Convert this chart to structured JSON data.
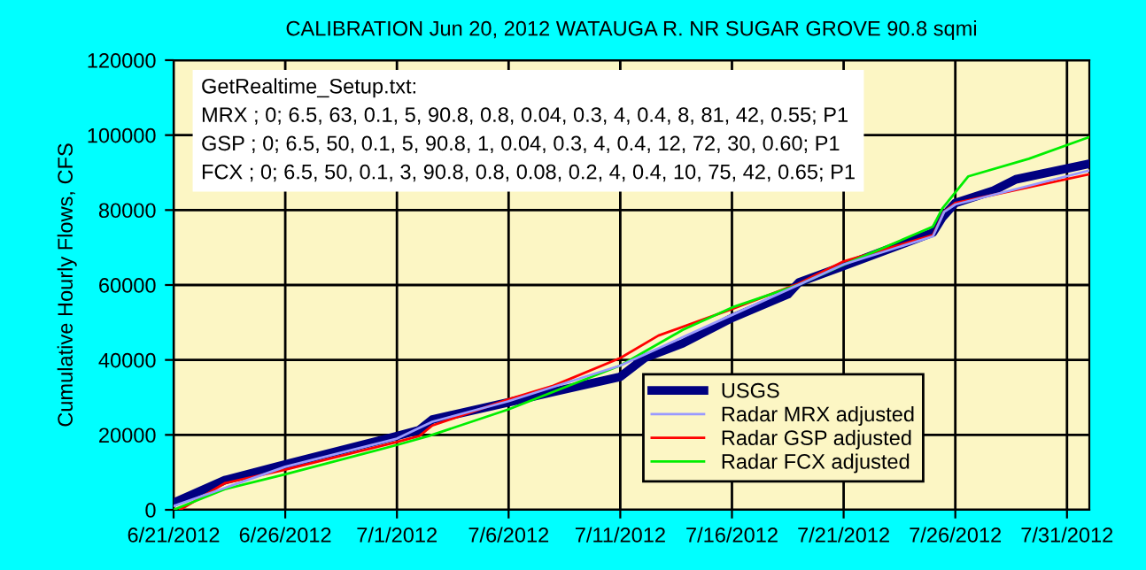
{
  "chart_data": {
    "type": "line",
    "title": "CALIBRATION Jun 20, 2012 WATAUGA R. NR SUGAR GROVE 90.8 sqmi",
    "ylabel": "Cumulative Hourly Flows, CFS",
    "annotations": [
      "GetRealtime_Setup.txt:",
      "MRX ; 0; 6.5, 63, 0.1, 5, 90.8, 0.8, 0.04, 0.3, 4, 0.4, 8, 81, 42, 0.55; P1",
      "GSP ; 0; 6.5, 50, 0.1, 5, 90.8, 1, 0.04, 0.3, 4, 0.4, 12, 72, 30, 0.60; P1",
      "FCX ; 0; 6.5, 50, 0.1, 3, 90.8, 0.8, 0.08, 0.2, 4, 0.4, 10, 75, 42, 0.65; P1"
    ],
    "series": [
      {
        "name": "USGS",
        "color": "#000080",
        "x": [
          "2012-06-21T00:00",
          "2012-06-23T07:00",
          "2012-06-26T00:00",
          "2012-07-01T00:00",
          "2012-07-02T00:00",
          "2012-07-02T14:00",
          "2012-07-06T00:00",
          "2012-07-08T00:00",
          "2012-07-11T00:00",
          "2012-07-12T02:00",
          "2012-07-13T19:00",
          "2012-07-16T00:00",
          "2012-07-18T12:00",
          "2012-07-19T00:00",
          "2012-07-20T19:00",
          "2012-07-25T00:00",
          "2012-07-25T10:00",
          "2012-07-26T00:00",
          "2012-07-27T17:00",
          "2012-07-28T17:00",
          "2012-07-31T23:00"
        ],
        "values": [
          1900,
          7900,
          12100,
          19700,
          21300,
          24100,
          28700,
          31500,
          35500,
          40500,
          44400,
          51200,
          57500,
          60700,
          64600,
          74000,
          78000,
          81900,
          85200,
          88200,
          92300
        ]
      },
      {
        "name": "Radar MRX adjusted",
        "color": "#9999ff",
        "x": [
          "2012-06-21T00:00",
          "2012-06-26T00:00",
          "2012-07-01T00:00",
          "2012-07-02T14:00",
          "2012-07-06T00:00",
          "2012-07-11T00:00",
          "2012-07-16T00:00",
          "2012-07-21T00:00",
          "2012-07-25T00:00",
          "2012-07-25T12:00",
          "2012-07-26T00:00",
          "2012-07-31T23:00"
        ],
        "values": [
          1000,
          11500,
          19000,
          23500,
          29000,
          38500,
          52000,
          65500,
          73000,
          79500,
          81500,
          90500
        ]
      },
      {
        "name": "Radar GSP adjusted",
        "color": "#ff0000",
        "x": [
          "2012-06-21T07:00",
          "2012-06-23T07:00",
          "2012-06-26T00:00",
          "2012-07-01T00:00",
          "2012-07-02T00:00",
          "2012-07-02T14:00",
          "2012-07-06T00:00",
          "2012-07-08T00:00",
          "2012-07-11T00:00",
          "2012-07-12T17:00",
          "2012-07-16T00:00",
          "2012-07-18T22:00",
          "2012-07-21T00:00",
          "2012-07-25T00:00",
          "2012-07-25T12:00",
          "2012-07-26T00:00",
          "2012-07-31T23:00"
        ],
        "values": [
          0,
          7100,
          10700,
          18100,
          19700,
          22500,
          29500,
          33100,
          40500,
          46500,
          53600,
          60200,
          66300,
          73300,
          79600,
          81900,
          89500
        ]
      },
      {
        "name": "Radar FCX adjusted",
        "color": "#00ee00",
        "x": [
          "2012-06-21T00:00",
          "2012-06-23T07:00",
          "2012-06-26T00:00",
          "2012-07-01T00:00",
          "2012-07-02T10:00",
          "2012-07-06T00:00",
          "2012-07-11T00:00",
          "2012-07-13T19:00",
          "2012-07-16T00:00",
          "2012-07-18T22:00",
          "2012-07-21T00:00",
          "2012-07-25T00:00",
          "2012-07-25T10:00",
          "2012-07-26T14:00",
          "2012-07-29T07:00",
          "2012-07-31T23:00"
        ],
        "values": [
          0,
          5500,
          9500,
          17300,
          19700,
          26800,
          38500,
          48000,
          54000,
          59900,
          65400,
          75600,
          80400,
          89000,
          93700,
          99400
        ]
      }
    ],
    "xlim": [
      "2012-06-21",
      "2012-08-01"
    ],
    "xticks": [
      {
        "value": "2012-06-21",
        "label": "6/21/2012"
      },
      {
        "value": "2012-06-26",
        "label": "6/26/2012"
      },
      {
        "value": "2012-07-01",
        "label": "7/1/2012"
      },
      {
        "value": "2012-07-06",
        "label": "7/6/2012"
      },
      {
        "value": "2012-07-11",
        "label": "7/11/2012"
      },
      {
        "value": "2012-07-16",
        "label": "7/16/2012"
      },
      {
        "value": "2012-07-21",
        "label": "7/21/2012"
      },
      {
        "value": "2012-07-26",
        "label": "7/26/2012"
      },
      {
        "value": "2012-07-31",
        "label": "7/31/2012"
      }
    ],
    "ylim": [
      0,
      120000
    ],
    "yticks": [
      0,
      20000,
      40000,
      60000,
      80000,
      100000,
      120000
    ],
    "grid": true,
    "legend": "bottom right",
    "marker": "none",
    "line_style": "solid"
  }
}
